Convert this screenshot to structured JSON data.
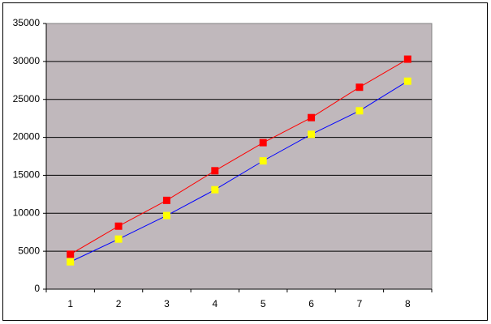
{
  "chart_data": {
    "type": "line",
    "categories": [
      1,
      2,
      3,
      4,
      5,
      6,
      7,
      8
    ],
    "series": [
      {
        "line_color": "#ff0000",
        "marker_color": "#ff0000",
        "values": [
          4600,
          8300,
          11700,
          15600,
          19300,
          22600,
          26600,
          30300
        ]
      },
      {
        "line_color": "#0000ff",
        "marker_color": "#ffff00",
        "values": [
          3600,
          6600,
          9700,
          13100,
          16900,
          20400,
          23500,
          27400
        ]
      }
    ],
    "ylim": [
      0,
      35000
    ],
    "yticks": [
      0,
      5000,
      10000,
      15000,
      20000,
      25000,
      30000,
      35000
    ],
    "grid": true,
    "plot_background": "#c0b8bc"
  }
}
